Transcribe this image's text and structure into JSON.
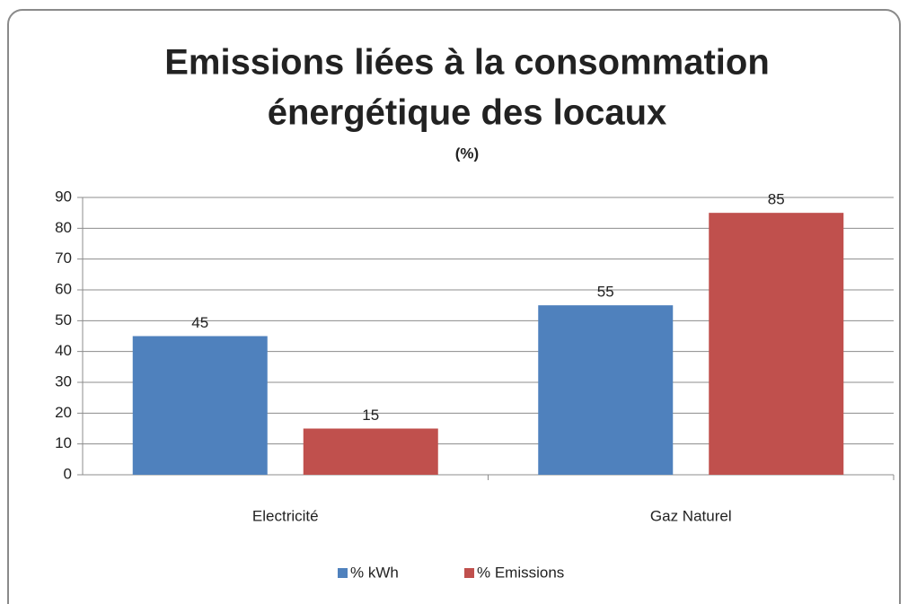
{
  "chart_data": {
    "type": "bar",
    "title": [
      "Emissions liées à la consommation",
      "énergétique des locaux"
    ],
    "subtitle": "(%)",
    "categories": [
      "Electricité",
      "Gaz Naturel"
    ],
    "series": [
      {
        "name": "% kWh",
        "color": "#4f81bd",
        "values": [
          45,
          55
        ]
      },
      {
        "name": "% Emissions",
        "color": "#c0504d",
        "values": [
          15,
          85
        ]
      }
    ],
    "ylim": [
      0,
      90
    ],
    "yticks": [
      0,
      10,
      20,
      30,
      40,
      50,
      60,
      70,
      80,
      90
    ],
    "grid": true,
    "legend": "bottom"
  }
}
